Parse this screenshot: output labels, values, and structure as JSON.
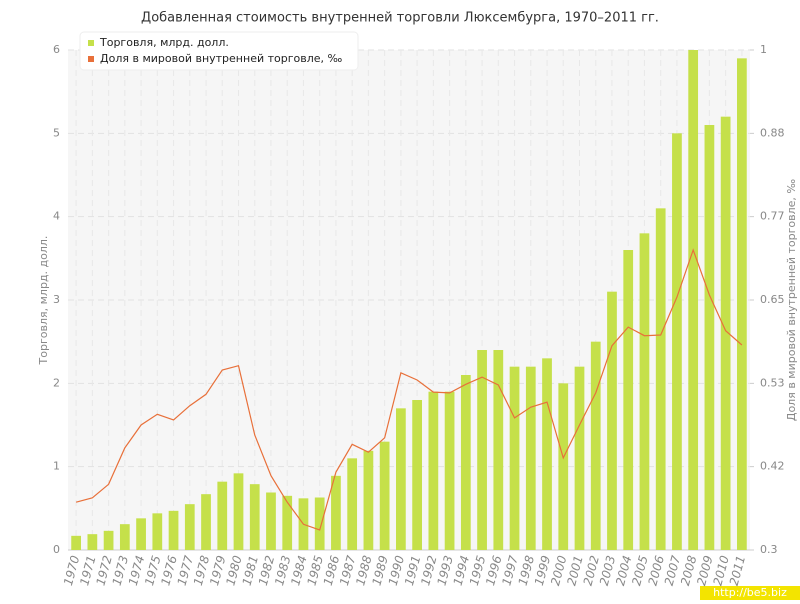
{
  "chart_data": {
    "type": "bar-line",
    "title": "Добавленная стоимость внутренней торговли Люксембурга, 1970–2011 гг.",
    "y_label": "Торговля, млрд. долл.",
    "y2_label": "Доля в мировой внутренней торговле, ‰",
    "watermark": "http://be5.biz",
    "categories": [
      "1970",
      "1971",
      "1972",
      "1973",
      "1974",
      "1975",
      "1976",
      "1977",
      "1978",
      "1979",
      "1980",
      "1981",
      "1982",
      "1983",
      "1984",
      "1985",
      "1986",
      "1987",
      "1988",
      "1989",
      "1990",
      "1991",
      "1992",
      "1993",
      "1994",
      "1995",
      "1996",
      "1997",
      "1998",
      "1999",
      "2000",
      "2001",
      "2002",
      "2003",
      "2004",
      "2005",
      "2006",
      "2007",
      "2008",
      "2009",
      "2010",
      "2011"
    ],
    "series": [
      {
        "name": "Торговля, млрд. долл.",
        "type": "bar",
        "color": "#c5e04a",
        "values": [
          0.17,
          0.19,
          0.23,
          0.31,
          0.38,
          0.44,
          0.47,
          0.55,
          0.67,
          0.82,
          0.92,
          0.79,
          0.69,
          0.65,
          0.62,
          0.63,
          0.89,
          1.1,
          1.19,
          1.3,
          1.7,
          1.8,
          1.9,
          1.9,
          2.1,
          2.4,
          2.4,
          2.2,
          2.2,
          2.3,
          2.0,
          2.2,
          2.5,
          3.1,
          3.6,
          3.8,
          4.1,
          5.0,
          6.0,
          5.1,
          5.2,
          5.9
        ]
      },
      {
        "name": "Доля в мировой внутренней торговле, ‰",
        "type": "line",
        "axis": "y2",
        "color": "#e8703a",
        "values": [
          0.367,
          0.373,
          0.392,
          0.443,
          0.475,
          0.49,
          0.482,
          0.502,
          0.518,
          0.552,
          0.558,
          0.461,
          0.404,
          0.367,
          0.336,
          0.328,
          0.409,
          0.448,
          0.437,
          0.457,
          0.548,
          0.538,
          0.521,
          0.52,
          0.532,
          0.542,
          0.531,
          0.485,
          0.5,
          0.507,
          0.429,
          0.475,
          0.52,
          0.586,
          0.612,
          0.6,
          0.601,
          0.654,
          0.72,
          0.657,
          0.607,
          0.587
        ]
      }
    ],
    "ylim": [
      0,
      6
    ],
    "yticks": [
      0,
      1,
      2,
      3,
      4,
      5,
      6
    ],
    "y2lim": [
      0.3,
      1
    ],
    "y2ticks": [
      {
        "value": 0.3,
        "label": "0.3"
      },
      {
        "value": 0.4167,
        "label": "0.42"
      },
      {
        "value": 0.5333,
        "label": "0.53"
      },
      {
        "value": 0.65,
        "label": "0.65"
      },
      {
        "value": 0.7667,
        "label": "0.77"
      },
      {
        "value": 0.8833,
        "label": "0.88"
      },
      {
        "value": 1,
        "label": "1"
      }
    ],
    "grid": true,
    "legend": "top-left"
  }
}
